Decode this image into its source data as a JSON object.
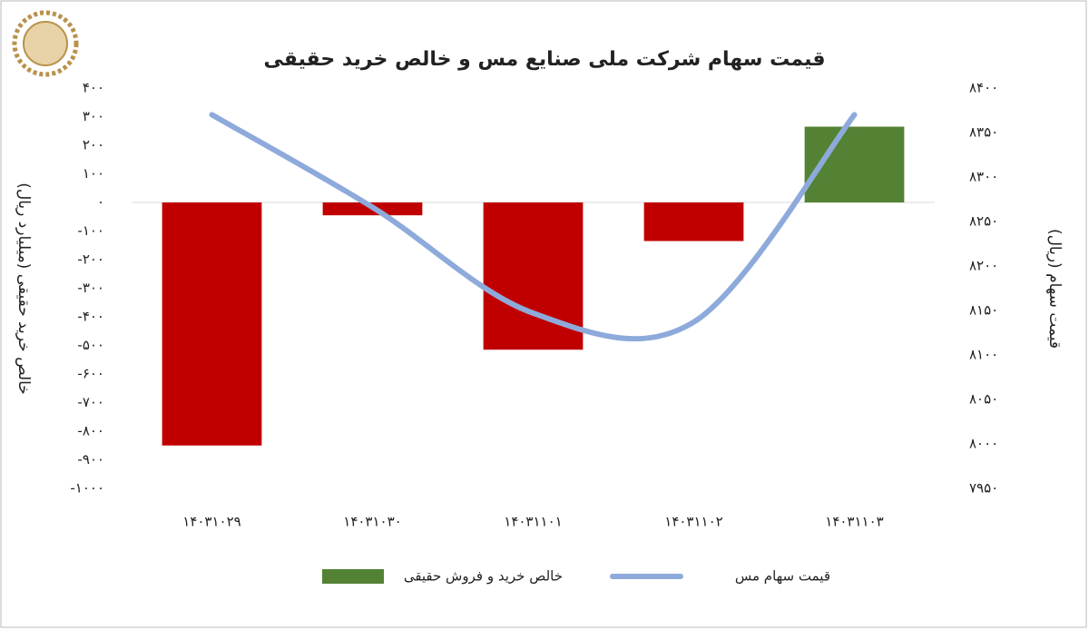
{
  "chart_data": {
    "type": "bar-line",
    "title": "قیمت سهام شرکت ملی صنایع مس و خالص خرید حقیقی",
    "ylabel": "خالص خرید حقیقی (میلیارد ریال)",
    "y2label": "قیمت سهام (ریال)",
    "categories": [
      "۱۴۰۳۱۰۲۹",
      "۱۴۰۳۱۰۳۰",
      "۱۴۰۳۱۱۰۱",
      "۱۴۰۳۱۱۰۲",
      "۱۴۰۳۱۱۰۳"
    ],
    "series": [
      {
        "name": "خالص خرید و فروش حقیقی",
        "type": "bar",
        "color": "#548235",
        "negative_color": "#c00000",
        "values": [
          -850,
          -45,
          -515,
          -135,
          265
        ]
      },
      {
        "name": "قیمت سهام مس",
        "type": "line",
        "axis": "y2",
        "color": "#8eaadb",
        "values": [
          8370,
          8266,
          8147,
          8137,
          8370
        ]
      }
    ],
    "ylim": [
      -1000,
      400
    ],
    "yticks": [
      {
        "value": -1000,
        "label": "-۱۰۰۰"
      },
      {
        "value": -900,
        "label": "-۹۰۰"
      },
      {
        "value": -800,
        "label": "-۸۰۰"
      },
      {
        "value": -700,
        "label": "-۷۰۰"
      },
      {
        "value": -600,
        "label": "-۶۰۰"
      },
      {
        "value": -500,
        "label": "-۵۰۰"
      },
      {
        "value": -400,
        "label": "-۴۰۰"
      },
      {
        "value": -300,
        "label": "-۳۰۰"
      },
      {
        "value": -200,
        "label": "-۲۰۰"
      },
      {
        "value": -100,
        "label": "-۱۰۰"
      },
      {
        "value": 0,
        "label": "۰"
      },
      {
        "value": 100,
        "label": "۱۰۰"
      },
      {
        "value": 200,
        "label": "۲۰۰"
      },
      {
        "value": 300,
        "label": "۳۰۰"
      },
      {
        "value": 400,
        "label": "۴۰۰"
      }
    ],
    "y2lim": [
      7950,
      8400
    ],
    "y2ticks": [
      {
        "value": 7950,
        "label": "۷۹۵۰"
      },
      {
        "value": 8000,
        "label": "۸۰۰۰"
      },
      {
        "value": 8050,
        "label": "۸۰۵۰"
      },
      {
        "value": 8100,
        "label": "۸۱۰۰"
      },
      {
        "value": 8150,
        "label": "۸۱۵۰"
      },
      {
        "value": 8200,
        "label": "۸۲۰۰"
      },
      {
        "value": 8250,
        "label": "۸۲۵۰"
      },
      {
        "value": 8300,
        "label": "۸۳۰۰"
      },
      {
        "value": 8350,
        "label": "۸۳۵۰"
      },
      {
        "value": 8400,
        "label": "۸۴۰۰"
      }
    ],
    "legend": "bottom"
  }
}
